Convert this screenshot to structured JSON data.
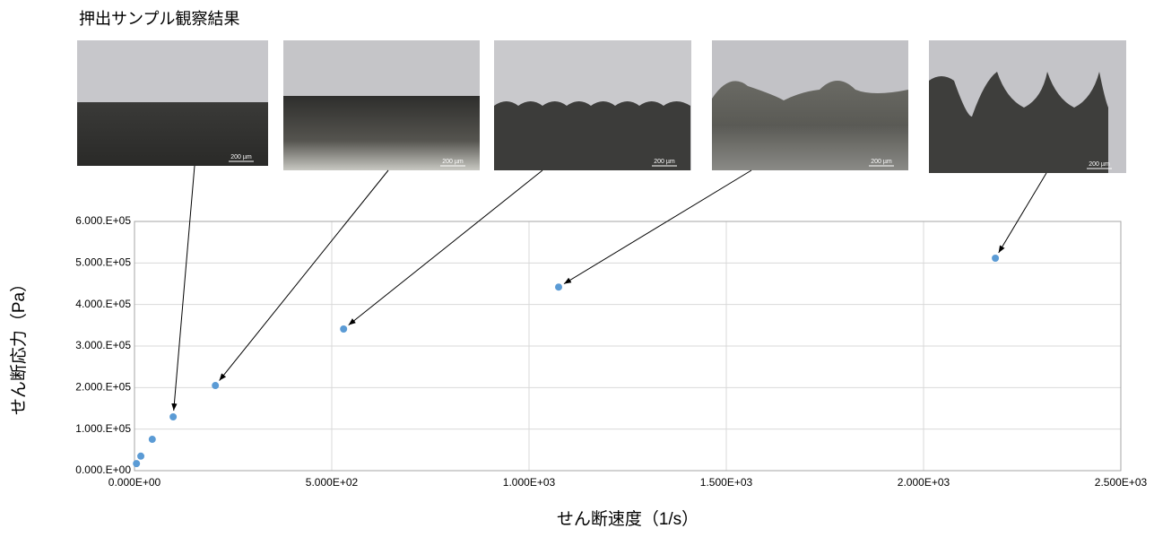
{
  "chart_data": {
    "type": "scatter",
    "title": "押出サンプル観察結果",
    "photo_scale_labels": [
      "200 µm",
      "200 µm",
      "200 µm",
      "200 µm",
      "200 µm"
    ],
    "x_label": "せん断速度（1/s）",
    "y_label": "せん断応力（Pa）",
    "x": [
      5,
      16,
      45,
      98,
      205,
      530,
      1075,
      2182
    ],
    "series": [
      {
        "color": "#5b9bd5",
        "values": [
          17000,
          35000,
          75500,
          129500,
          205000,
          341000,
          442000,
          511500
        ]
      }
    ],
    "xlim": [
      0,
      2500
    ],
    "xticks": [
      {
        "value": 0,
        "label": "0.000E+00"
      },
      {
        "value": 500,
        "label": "5.000E+02"
      },
      {
        "value": 1000,
        "label": "1.000E+03"
      },
      {
        "value": 1500,
        "label": "1.500E+03"
      },
      {
        "value": 2000,
        "label": "2.000E+03"
      },
      {
        "value": 2500,
        "label": "2.500E+03"
      }
    ],
    "ylim": [
      0,
      600000
    ],
    "yticks": [
      {
        "value": 0,
        "label": "0.000.E+00"
      },
      {
        "value": 100000,
        "label": "1.000.E+05"
      },
      {
        "value": 200000,
        "label": "2.000.E+05"
      },
      {
        "value": 300000,
        "label": "3.000.E+05"
      },
      {
        "value": 400000,
        "label": "4.000.E+05"
      },
      {
        "value": 500000,
        "label": "5.000.E+05"
      },
      {
        "value": 600000,
        "label": "6.000.E+05"
      }
    ],
    "grid": true
  }
}
